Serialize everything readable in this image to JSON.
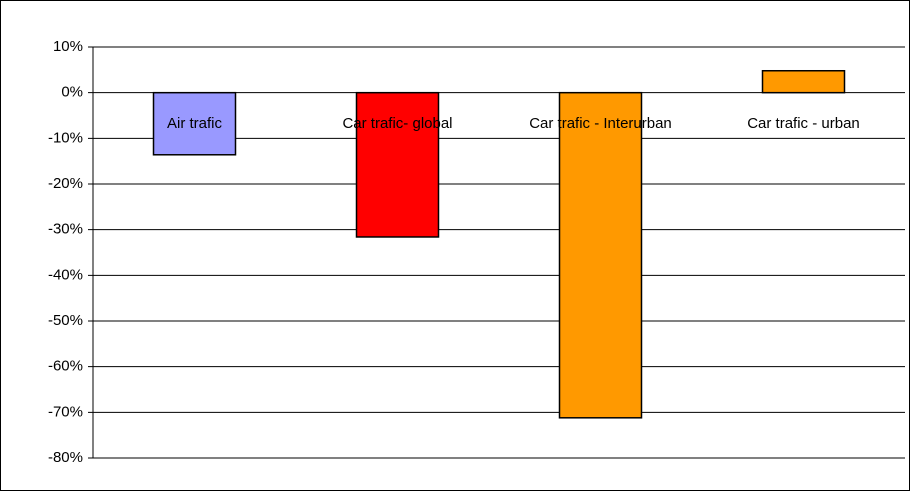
{
  "chart_data": {
    "type": "bar",
    "categories": [
      "Air trafic",
      "Car trafic- global",
      "Car trafic - Interurban",
      "Car trafic - urban"
    ],
    "values": [
      -13.6,
      -31.6,
      -71.2,
      4.8
    ],
    "colors": [
      "#9999ff",
      "#ff0000",
      "#ff9900",
      "#ff9900"
    ],
    "ylim": [
      -80,
      10
    ],
    "yticks": [
      {
        "value": -80,
        "label": "-80%"
      },
      {
        "value": -70,
        "label": "-70%"
      },
      {
        "value": -60,
        "label": "-60%"
      },
      {
        "value": -50,
        "label": "-50%"
      },
      {
        "value": -40,
        "label": "-40%"
      },
      {
        "value": -30,
        "label": "-30%"
      },
      {
        "value": -20,
        "label": "-20%"
      },
      {
        "value": -10,
        "label": "-10%"
      },
      {
        "value": 0,
        "label": "0%"
      },
      {
        "value": 10,
        "label": "10%"
      }
    ],
    "grid": true
  }
}
